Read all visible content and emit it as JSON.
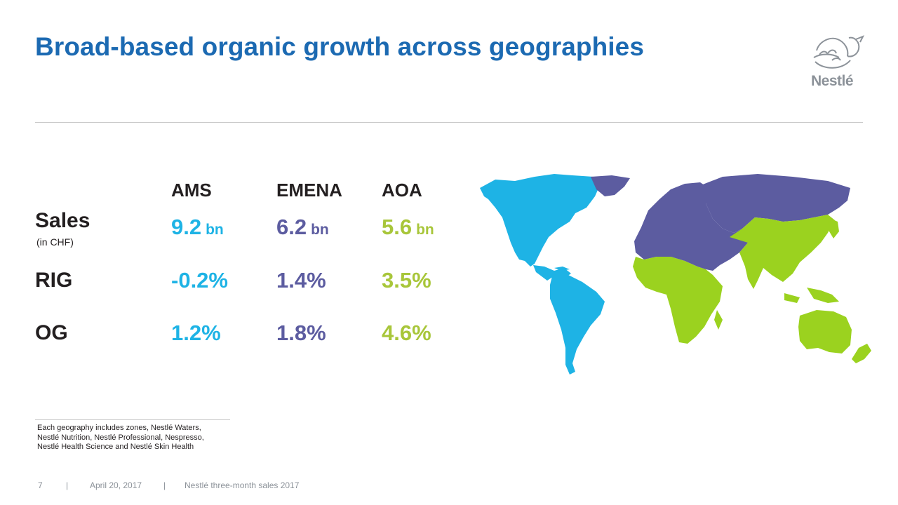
{
  "slide": {
    "title": "Broad-based organic growth across geographies",
    "logo_text": "Nestlé"
  },
  "columns": [
    "AMS",
    "EMENA",
    "AOA"
  ],
  "rows": {
    "sales": {
      "label": "Sales",
      "sublabel": "(in CHF)",
      "values": [
        "9.2",
        "6.2",
        "5.6"
      ],
      "unit": "bn"
    },
    "rig": {
      "label": "RIG",
      "values": [
        "-0.2%",
        "1.4%",
        "3.5%"
      ]
    },
    "og": {
      "label": "OG",
      "values": [
        "1.2%",
        "1.8%",
        "4.6%"
      ]
    }
  },
  "region_colors": {
    "AMS": "#1eb3e5",
    "EMENA": "#5c5ca0",
    "AOA": "#9bd21f"
  },
  "note": {
    "lines": [
      "Each geography includes zones, Nestlé Waters,",
      "Nestlé Nutrition, Nestlé Professional, Nespresso,",
      "Nestlé Health Science and Nestlé Skin Health"
    ]
  },
  "footer": {
    "page": "7",
    "sep": "|",
    "date": "April 20, 2017",
    "doc": "Nestlé three-month sales 2017"
  }
}
